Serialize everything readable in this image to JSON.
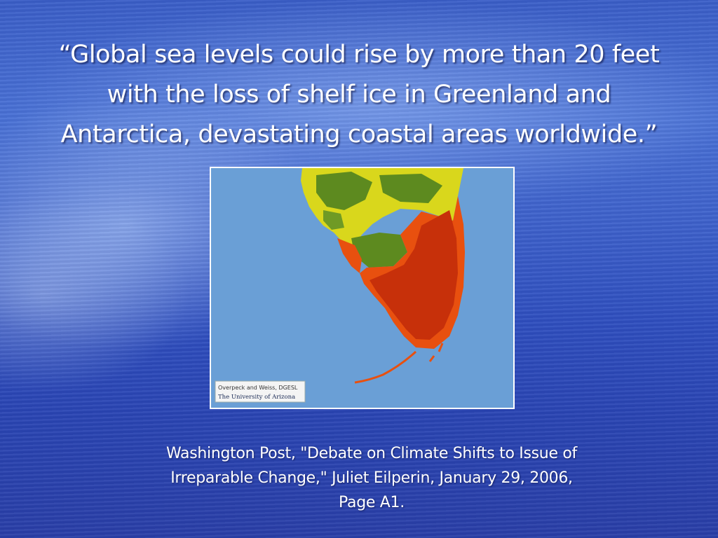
{
  "slide": {
    "title_lines": [
      "“Global sea levels could rise by more than 20 feet",
      "with the loss of shelf ice in Greenland and",
      "Antarctica, devastating coastal areas worldwide.”"
    ],
    "map": {
      "credit_line1": "Overpeck and Weiss, DGESL",
      "credit_line2": "The University of Arizona",
      "colors": {
        "ocean": "#6a9fd6",
        "land_green": "#5d8a1f",
        "land_yellow": "#d9d71c",
        "flooded_red": "#c7300a",
        "flooded_orange": "#e8500f"
      }
    },
    "citation_lines": [
      "Washington Post, \"Debate on Climate Shifts to Issue of",
      "Irreparable Change,\" Juliet Eilperin, January 29, 2006,",
      "Page A1."
    ]
  }
}
